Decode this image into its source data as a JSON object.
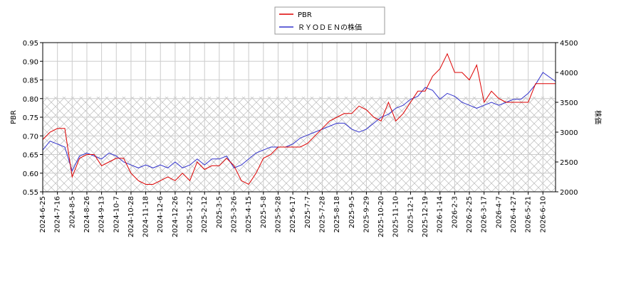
{
  "chart_data": {
    "type": "line",
    "ylabel": "PBR",
    "y2label": "株価",
    "xlim": [
      0,
      488
    ],
    "xticks": [
      {
        "value": 0,
        "label": "2024-6-25"
      },
      {
        "value": 14,
        "label": "2024-7-16"
      },
      {
        "value": 28,
        "label": "2024-8-5"
      },
      {
        "value": 42,
        "label": "2024-8-26"
      },
      {
        "value": 56,
        "label": "2024-9-13"
      },
      {
        "value": 70,
        "label": "2024-10-7"
      },
      {
        "value": 84,
        "label": "2024-10-28"
      },
      {
        "value": 98,
        "label": "2024-11-18"
      },
      {
        "value": 112,
        "label": "2024-12-6"
      },
      {
        "value": 126,
        "label": "2024-12-26"
      },
      {
        "value": 140,
        "label": "2025-1-22"
      },
      {
        "value": 154,
        "label": "2025-2-12"
      },
      {
        "value": 168,
        "label": "2025-3-5"
      },
      {
        "value": 182,
        "label": "2025-3-26"
      },
      {
        "value": 196,
        "label": "2025-4-15"
      },
      {
        "value": 210,
        "label": "2025-5-8"
      },
      {
        "value": 224,
        "label": "2025-5-28"
      },
      {
        "value": 238,
        "label": "2025-6-17"
      },
      {
        "value": 252,
        "label": "2025-7-7"
      },
      {
        "value": 266,
        "label": "2025-7-28"
      },
      {
        "value": 280,
        "label": "2025-8-18"
      },
      {
        "value": 294,
        "label": "2025-9-5"
      },
      {
        "value": 308,
        "label": "2025-9-29"
      },
      {
        "value": 322,
        "label": "2025-10-20"
      },
      {
        "value": 336,
        "label": "2025-11-10"
      },
      {
        "value": 350,
        "label": "2025-12-1"
      },
      {
        "value": 364,
        "label": "2025-12-19"
      },
      {
        "value": 378,
        "label": "2026-1-14"
      },
      {
        "value": 392,
        "label": "2026-2-3"
      },
      {
        "value": 406,
        "label": "2026-2-25"
      },
      {
        "value": 420,
        "label": "2026-3-17"
      },
      {
        "value": 434,
        "label": "2026-4-7"
      },
      {
        "value": 448,
        "label": "2026-4-27"
      },
      {
        "value": 462,
        "label": "2026-5-21"
      },
      {
        "value": 476,
        "label": "2026-6-10"
      }
    ],
    "ylim": [
      0.55,
      0.95
    ],
    "yticks": [
      {
        "value": 0.55,
        "label": "0.55"
      },
      {
        "value": 0.6,
        "label": "0.60"
      },
      {
        "value": 0.65,
        "label": "0.65"
      },
      {
        "value": 0.7,
        "label": "0.70"
      },
      {
        "value": 0.75,
        "label": "0.75"
      },
      {
        "value": 0.8,
        "label": "0.80"
      },
      {
        "value": 0.85,
        "label": "0.85"
      },
      {
        "value": 0.9,
        "label": "0.90"
      },
      {
        "value": 0.95,
        "label": "0.95"
      }
    ],
    "y2lim": [
      2000,
      4500
    ],
    "y2ticks": [
      2000,
      2500,
      3000,
      3500,
      4000,
      4500
    ],
    "grid": true,
    "hatched_band": [
      0.55,
      0.805
    ],
    "x": [
      0,
      7,
      14,
      21,
      28,
      35,
      42,
      49,
      56,
      63,
      70,
      77,
      84,
      91,
      98,
      105,
      112,
      119,
      126,
      133,
      140,
      147,
      154,
      161,
      168,
      175,
      182,
      189,
      196,
      203,
      210,
      217,
      224,
      231,
      238,
      245,
      252,
      259,
      266,
      273,
      280,
      287,
      294,
      301,
      308,
      315,
      322,
      329,
      336,
      343,
      350,
      357,
      364,
      371,
      378,
      385,
      392,
      399,
      406,
      413,
      420,
      427,
      434,
      441,
      448,
      455,
      462,
      469,
      476,
      488
    ],
    "series": [
      {
        "name": "PBR",
        "color": "#dd0000",
        "values": [
          0.69,
          0.71,
          0.72,
          0.72,
          0.59,
          0.64,
          0.65,
          0.65,
          0.62,
          0.63,
          0.64,
          0.64,
          0.6,
          0.58,
          0.57,
          0.57,
          0.58,
          0.59,
          0.58,
          0.6,
          0.58,
          0.63,
          0.61,
          0.62,
          0.62,
          0.64,
          0.62,
          0.58,
          0.57,
          0.6,
          0.64,
          0.65,
          0.67,
          0.67,
          0.67,
          0.67,
          0.68,
          0.7,
          0.72,
          0.74,
          0.75,
          0.76,
          0.76,
          0.78,
          0.77,
          0.75,
          0.74,
          0.79,
          0.74,
          0.76,
          0.79,
          0.82,
          0.82,
          0.86,
          0.88,
          0.92,
          0.87,
          0.87,
          0.85,
          0.89,
          0.79,
          0.82,
          0.8,
          0.79,
          0.79,
          0.79,
          0.79,
          0.84,
          0.84,
          0.84
        ]
      },
      {
        "name": "ＲＹＯＤＥＮの株価",
        "color": "#3333cc",
        "axis": "y2",
        "values": [
          2700,
          2850,
          2800,
          2750,
          2350,
          2600,
          2650,
          2600,
          2550,
          2650,
          2600,
          2500,
          2450,
          2400,
          2450,
          2400,
          2450,
          2400,
          2500,
          2400,
          2450,
          2550,
          2450,
          2550,
          2550,
          2600,
          2400,
          2450,
          2550,
          2650,
          2700,
          2750,
          2750,
          2750,
          2800,
          2900,
          2950,
          3000,
          3050,
          3100,
          3150,
          3150,
          3050,
          3000,
          3050,
          3150,
          3250,
          3300,
          3400,
          3450,
          3550,
          3600,
          3750,
          3700,
          3550,
          3650,
          3600,
          3500,
          3450,
          3400,
          3450,
          3500,
          3450,
          3500,
          3550,
          3550,
          3650,
          3800,
          4000,
          3850
        ]
      }
    ],
    "legend": "upper center"
  }
}
